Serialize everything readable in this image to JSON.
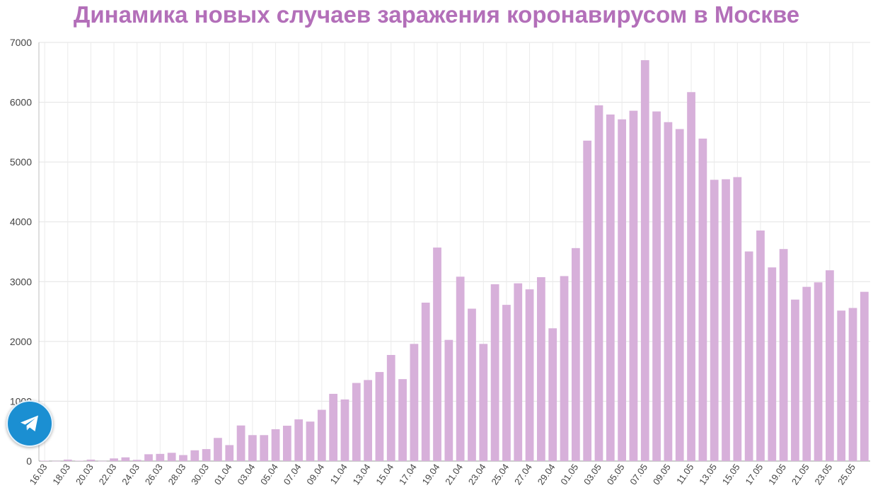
{
  "chart_data": {
    "type": "bar",
    "title": "Динамика новых случаев заражения коронавирусом в Москве",
    "xlabel": "",
    "ylabel": "",
    "ylim": [
      0,
      7000
    ],
    "yticks": [
      0,
      1000,
      2000,
      3000,
      4000,
      5000,
      6000,
      7000
    ],
    "grid": true,
    "bar_color": "#d7b0da",
    "categories": [
      "16.03",
      "17.03",
      "18.03",
      "19.03",
      "20.03",
      "21.03",
      "22.03",
      "23.03",
      "24.03",
      "25.03",
      "26.03",
      "27.03",
      "28.03",
      "29.03",
      "30.03",
      "31.03",
      "01.04",
      "02.04",
      "03.04",
      "04.04",
      "05.04",
      "06.04",
      "07.04",
      "08.04",
      "09.04",
      "10.04",
      "11.04",
      "12.04",
      "13.04",
      "14.04",
      "15.04",
      "16.04",
      "17.04",
      "18.04",
      "19.04",
      "20.04",
      "21.04",
      "22.04",
      "23.04",
      "24.04",
      "25.04",
      "26.04",
      "27.04",
      "28.04",
      "29.04",
      "30.04",
      "01.05",
      "02.05",
      "03.05",
      "04.05",
      "05.05",
      "06.05",
      "07.05",
      "08.05",
      "09.05",
      "10.05",
      "11.05",
      "12.05",
      "13.05",
      "14.05",
      "15.05",
      "16.05",
      "17.05",
      "18.05",
      "19.05",
      "20.05",
      "21.05",
      "22.05",
      "23.05",
      "24.05",
      "25.05",
      "26.05"
    ],
    "tick_labels": [
      "16.03",
      "18.03",
      "20.03",
      "22.03",
      "24.03",
      "26.03",
      "28.03",
      "30.03",
      "01.04",
      "03.04",
      "05.04",
      "07.04",
      "09.04",
      "11.04",
      "13.04",
      "15.04",
      "17.04",
      "19.04",
      "21.04",
      "23.04",
      "25.04",
      "27.04",
      "29.04",
      "01.05",
      "03.05",
      "05.05",
      "07.05",
      "09.05",
      "11.05",
      "13.05",
      "15.05",
      "17.05",
      "19.05",
      "21.05",
      "23.05",
      "25.05"
    ],
    "values": [
      6,
      2,
      24,
      6,
      24,
      2,
      44,
      62,
      20,
      114,
      120,
      138,
      100,
      180,
      200,
      387,
      267,
      595,
      434,
      434,
      532,
      591,
      697,
      660,
      857,
      1124,
      1030,
      1306,
      1355,
      1489,
      1774,
      1370,
      1959,
      2649,
      3570,
      2026,
      3083,
      2548,
      1959,
      2957,
      2612,
      2972,
      2871,
      3075,
      2220,
      3093,
      3561,
      5358,
      5948,
      5795,
      5714,
      5858,
      6703,
      5846,
      5667,
      5551,
      6169,
      5392,
      4703,
      4712,
      4748,
      3505,
      3855,
      3238,
      3545,
      2700,
      2913,
      2988,
      3190,
      2516,
      2560,
      2830
    ]
  },
  "icons": {
    "telegram": "telegram-paper-plane-icon"
  },
  "colors": {
    "title": "#b36fb9",
    "bars": "#d7b0da",
    "telegram": "#1b8fd2"
  }
}
